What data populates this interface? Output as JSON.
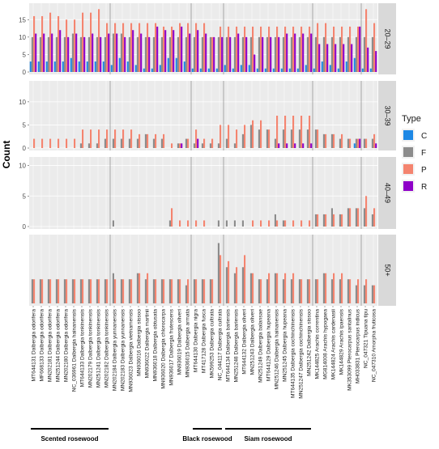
{
  "chart_data": {
    "type": "bar",
    "ylabel": "Count",
    "xlabel": "",
    "legend": {
      "title": "Type",
      "placement": "right",
      "entries": [
        {
          "name": "C",
          "color": "#1E88E5"
        },
        {
          "name": "F",
          "color": "#8C8C8C"
        },
        {
          "name": "P",
          "color": "#F4846F"
        },
        {
          "name": "R",
          "color": "#8E00C8"
        }
      ]
    },
    "categories": [
      "MT644131 Dalbergia odorifera",
      "MF668133 Dalbergia odorifera",
      "MN202181 Dalbergia odorifera",
      "MN251244 Dalbergia odorifera",
      "MN202180 Dalbergia odorifera",
      "NC_036961 Dalbergia hainanensis",
      "MT644133 Dalbergia tonkinensis",
      "MN202179 Dalbergia tonkinensis",
      "MN251241 Dalbergia tonkinensis",
      "MN202182 Dalbergia tonkinensis",
      "MN202184 Dalbergia yunnanensis",
      "MN202183 Dalbergia yunnanensis",
      "MN936023 Dalbergia vietnamensis",
      "MN936016 Dalbergia sissoo",
      "MN936022 Dalbergia martinii",
      "MN936018 Dalbergia obtusata",
      "MN936020 Dalbergia chlorocarpa",
      "MN936017 Dalbergia frutescens",
      "MN936019 Dalbergia oliveri",
      "MN936015 Dalbergia armata",
      "MT644130 Dalbergia nigra",
      "MT417128 Dalbergia fusca",
      "MK599253 Dalbergia cultrata",
      "NC_044117 Dalbergia cultrata",
      "MT644134 Dalbergia bariensis",
      "MN251248 Dalbergia bariensis",
      "MT644132 Dalbergia oliveri",
      "MN251243 Dalbergia oliveri",
      "MN251249 Dalbergia balansae",
      "MT644129 Dalbergia hupeana",
      "MN251246 Dalbergia hainanensis",
      "MN251245 Dalbergia hupeana",
      "MT644135 Dalbergia cochinchinensis",
      "MN251247 Dalbergia cochinchinensis",
      "MN251242 Dalbergia sissoo",
      "MK144825 Arachis correntina",
      "MG814008 Arachis hypogaea",
      "MK144824 Arachis cardenasii",
      "MK144829 Arachis ipaensis",
      "MK353099 Pterocarpus santalinus",
      "MH033831 Pterocarpus indicus",
      "NC_047321 Tipuana tipu",
      "NC_047310 Amorpha fruticosa"
    ],
    "group_separators_after_index": [
      9,
      19,
      23,
      34,
      40
    ],
    "group_labels": [
      {
        "label": "Scented rosewood",
        "from_index": 0,
        "to_index": 9
      },
      {
        "label": "Black rosewood",
        "from_index": 20,
        "to_index": 23
      },
      {
        "label": "Siam rosewood",
        "from_index": 24,
        "to_index": 34
      }
    ],
    "panels": [
      {
        "label": "20–29",
        "ylim": [
          0,
          19
        ],
        "yticks": [
          0,
          5,
          10,
          15
        ],
        "series": [
          {
            "name": "C",
            "values": [
              3,
              3,
              3,
              3,
              3,
              4,
              3,
              3,
              3,
              3,
              2,
              4,
              3,
              2,
              1,
              1,
              2,
              4,
              4,
              3,
              1,
              1,
              1,
              1,
              2,
              1,
              2,
              2,
              1,
              1,
              1,
              1,
              1,
              1,
              2,
              1,
              3,
              2,
              1,
              3,
              4,
              1,
              1
            ]
          },
          {
            "name": "F",
            "values": [
              10,
              10,
              10,
              10,
              10,
              11,
              10,
              10,
              10,
              10,
              11,
              11,
              10,
              10,
              10,
              10,
              10,
              10,
              10,
              10,
              10,
              10,
              10,
              10,
              10,
              10,
              10,
              10,
              10,
              10,
              10,
              10,
              10,
              10,
              10,
              10,
              10,
              10,
              10,
              10,
              10,
              10,
              10
            ]
          },
          {
            "name": "P",
            "values": [
              16,
              16,
              17,
              16,
              15,
              15,
              17,
              17,
              18,
              14,
              14,
              14,
              14,
              14,
              14,
              14,
              13,
              13,
              14,
              14,
              14,
              14,
              10,
              13,
              13,
              13,
              13,
              13,
              13,
              13,
              13,
              13,
              13,
              13,
              13,
              14,
              14,
              13,
              13,
              13,
              13,
              18,
              14
            ]
          },
          {
            "name": "R",
            "values": [
              11,
              11,
              11,
              12,
              10,
              11,
              10,
              11,
              10,
              11,
              11,
              10,
              12,
              11,
              10,
              13,
              12,
              12,
              13,
              11,
              12,
              11,
              10,
              10,
              10,
              11,
              10,
              5,
              10,
              10,
              10,
              11,
              11,
              11,
              11,
              8,
              8,
              8,
              8,
              8,
              13,
              7,
              6
            ]
          }
        ]
      },
      {
        "label": "30–39",
        "ylim": [
          0,
          14
        ],
        "yticks": [
          0,
          5,
          10
        ],
        "series": [
          {
            "name": "C",
            "values": [
              0,
              0,
              0,
              0,
              0,
              0,
              0,
              0,
              0,
              0,
              0,
              0,
              0,
              0,
              0,
              0,
              0,
              0,
              0,
              0,
              0,
              0,
              0,
              0,
              0,
              0,
              0,
              0,
              0,
              0,
              0,
              0,
              0,
              0,
              0,
              0,
              0,
              0,
              0,
              0,
              1,
              0,
              0
            ]
          },
          {
            "name": "F",
            "values": [
              0,
              0,
              0,
              0,
              0,
              0,
              1,
              1,
              1,
              2,
              2,
              2,
              2,
              2,
              3,
              2,
              2,
              0,
              1,
              2,
              1,
              1,
              1,
              1,
              2,
              1,
              3,
              5,
              4,
              4,
              2,
              4,
              4,
              4,
              4,
              4,
              3,
              3,
              2,
              2,
              2,
              2,
              2
            ]
          },
          {
            "name": "P",
            "values": [
              2,
              2,
              2,
              2,
              2,
              2,
              4,
              4,
              4,
              4,
              4,
              4,
              4,
              3,
              3,
              3,
              3,
              1,
              1,
              2,
              4,
              2,
              2,
              5,
              5,
              4,
              5,
              6,
              6,
              4,
              7,
              7,
              7,
              7,
              7,
              4,
              3,
              3,
              3,
              2,
              2,
              2,
              3
            ]
          },
          {
            "name": "R",
            "values": [
              0,
              0,
              0,
              0,
              0,
              0,
              0,
              0,
              0,
              0,
              0,
              0,
              0,
              0,
              0,
              0,
              0,
              0,
              1,
              0,
              2,
              0,
              0,
              0,
              0,
              0,
              0,
              0,
              0,
              0,
              1,
              1,
              1,
              1,
              1,
              0,
              0,
              0,
              0,
              0,
              2,
              0,
              1
            ]
          }
        ]
      },
      {
        "label": "40–49",
        "ylim": [
          0,
          11
        ],
        "yticks": [
          0,
          5,
          10
        ],
        "series": [
          {
            "name": "C",
            "values": [
              0,
              0,
              0,
              0,
              0,
              0,
              0,
              0,
              0,
              0,
              0,
              0,
              0,
              0,
              0,
              0,
              0,
              0,
              0,
              0,
              0,
              0,
              0,
              0,
              0,
              0,
              0,
              0,
              0,
              0,
              0,
              0,
              0,
              0,
              0,
              0,
              0,
              0,
              0,
              0,
              0,
              0,
              0
            ]
          },
          {
            "name": "F",
            "values": [
              0,
              0,
              0,
              0,
              0,
              0,
              0,
              0,
              0,
              0,
              1,
              0,
              0,
              0,
              0,
              0,
              0,
              1,
              0,
              0,
              0,
              0,
              0,
              1,
              1,
              1,
              1,
              0,
              0,
              0,
              2,
              1,
              0,
              0,
              0,
              2,
              2,
              3,
              2,
              3,
              3,
              3,
              2
            ]
          },
          {
            "name": "P",
            "values": [
              0,
              0,
              0,
              0,
              0,
              0,
              0,
              0,
              0,
              0,
              0,
              0,
              0,
              0,
              0,
              0,
              0,
              3,
              1,
              1,
              1,
              1,
              0,
              0,
              0,
              0,
              0,
              1,
              1,
              1,
              1,
              1,
              1,
              1,
              1,
              2,
              2,
              2,
              2,
              3,
              3,
              5,
              3
            ]
          },
          {
            "name": "R",
            "values": [
              0,
              0,
              0,
              0,
              0,
              0,
              0,
              0,
              0,
              0,
              0,
              0,
              0,
              0,
              0,
              0,
              0,
              0,
              0,
              0,
              0,
              0,
              0,
              0,
              0,
              0,
              0,
              0,
              0,
              0,
              0,
              0,
              0,
              0,
              0,
              0,
              0,
              0,
              0,
              0,
              0,
              0,
              0
            ]
          }
        ]
      },
      {
        "label": "50+",
        "ylim": [
          0,
          11
        ],
        "yticks": [],
        "series": [
          {
            "name": "C",
            "values": [
              0,
              0,
              0,
              0,
              0,
              0,
              0,
              0,
              0,
              0,
              0,
              0,
              0,
              0,
              0,
              0,
              0,
              0,
              0,
              0,
              0,
              0,
              0,
              0,
              0,
              0,
              0,
              0,
              0,
              0,
              0,
              0,
              0,
              0,
              0,
              0,
              0,
              0,
              0,
              0,
              0,
              0,
              0
            ]
          },
          {
            "name": "F",
            "values": [
              4,
              4,
              4,
              4,
              4,
              4,
              4,
              4,
              4,
              4,
              5,
              4,
              4,
              5,
              4,
              4,
              4,
              4,
              4,
              3,
              4,
              4,
              4,
              10,
              6,
              5,
              6,
              5,
              4,
              4,
              5,
              4,
              4,
              4,
              4,
              4,
              5,
              4,
              4,
              4,
              3,
              3,
              3
            ]
          },
          {
            "name": "P",
            "values": [
              4,
              4,
              4,
              4,
              4,
              4,
              4,
              4,
              4,
              4,
              4,
              4,
              4,
              5,
              5,
              4,
              4,
              4,
              4,
              4,
              4,
              4,
              4,
              8,
              7,
              6,
              8,
              5,
              4,
              5,
              5,
              5,
              5,
              4,
              4,
              4,
              5,
              5,
              5,
              4,
              4,
              4,
              3
            ]
          },
          {
            "name": "R",
            "values": [
              0,
              0,
              0,
              0,
              0,
              0,
              0,
              0,
              0,
              0,
              0,
              0,
              0,
              0,
              0,
              0,
              0,
              0,
              0,
              0,
              0,
              0,
              0,
              0,
              0,
              0,
              0,
              0,
              0,
              0,
              0,
              0,
              0,
              0,
              0,
              0,
              0,
              0,
              0,
              0,
              0,
              0,
              0
            ]
          }
        ]
      }
    ]
  }
}
